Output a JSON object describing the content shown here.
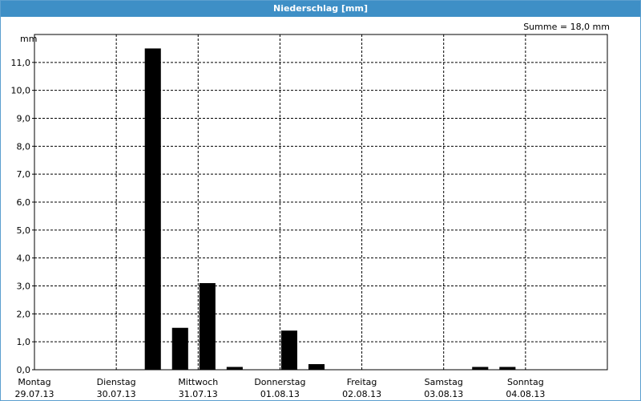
{
  "window": {
    "title": "Niederschlag [mm]"
  },
  "chart_data": {
    "type": "bar",
    "y_unit": "mm",
    "annotation": "Summe = 18,0 mm",
    "days": [
      {
        "name": "Montag",
        "date": "29.07.13"
      },
      {
        "name": "Dienstag",
        "date": "30.07.13"
      },
      {
        "name": "Mittwoch",
        "date": "31.07.13"
      },
      {
        "name": "Donnerstag",
        "date": "01.08.13"
      },
      {
        "name": "Freitag",
        "date": "02.08.13"
      },
      {
        "name": "Samstag",
        "date": "03.08.13"
      },
      {
        "name": "Sonntag",
        "date": "04.08.13"
      }
    ],
    "values": [
      0,
      0,
      0,
      0,
      11.5,
      1.5,
      3.1,
      0.1,
      0,
      1.4,
      0.2,
      0,
      0,
      0,
      0,
      0,
      0.1,
      0.1,
      0,
      0,
      0
    ],
    "color": "#000000",
    "ylim": [
      0,
      12
    ],
    "yticks": [
      {
        "value": 0,
        "label": "0,0"
      },
      {
        "value": 1,
        "label": "1,0"
      },
      {
        "value": 2,
        "label": "2,0"
      },
      {
        "value": 3,
        "label": "3,0"
      },
      {
        "value": 4,
        "label": "4,0"
      },
      {
        "value": 5,
        "label": "5,0"
      },
      {
        "value": 6,
        "label": "6,0"
      },
      {
        "value": 7,
        "label": "7,0"
      },
      {
        "value": 8,
        "label": "8,0"
      },
      {
        "value": 9,
        "label": "9,0"
      },
      {
        "value": 10,
        "label": "10,0"
      },
      {
        "value": 11,
        "label": "11,0"
      }
    ],
    "grid": true
  }
}
